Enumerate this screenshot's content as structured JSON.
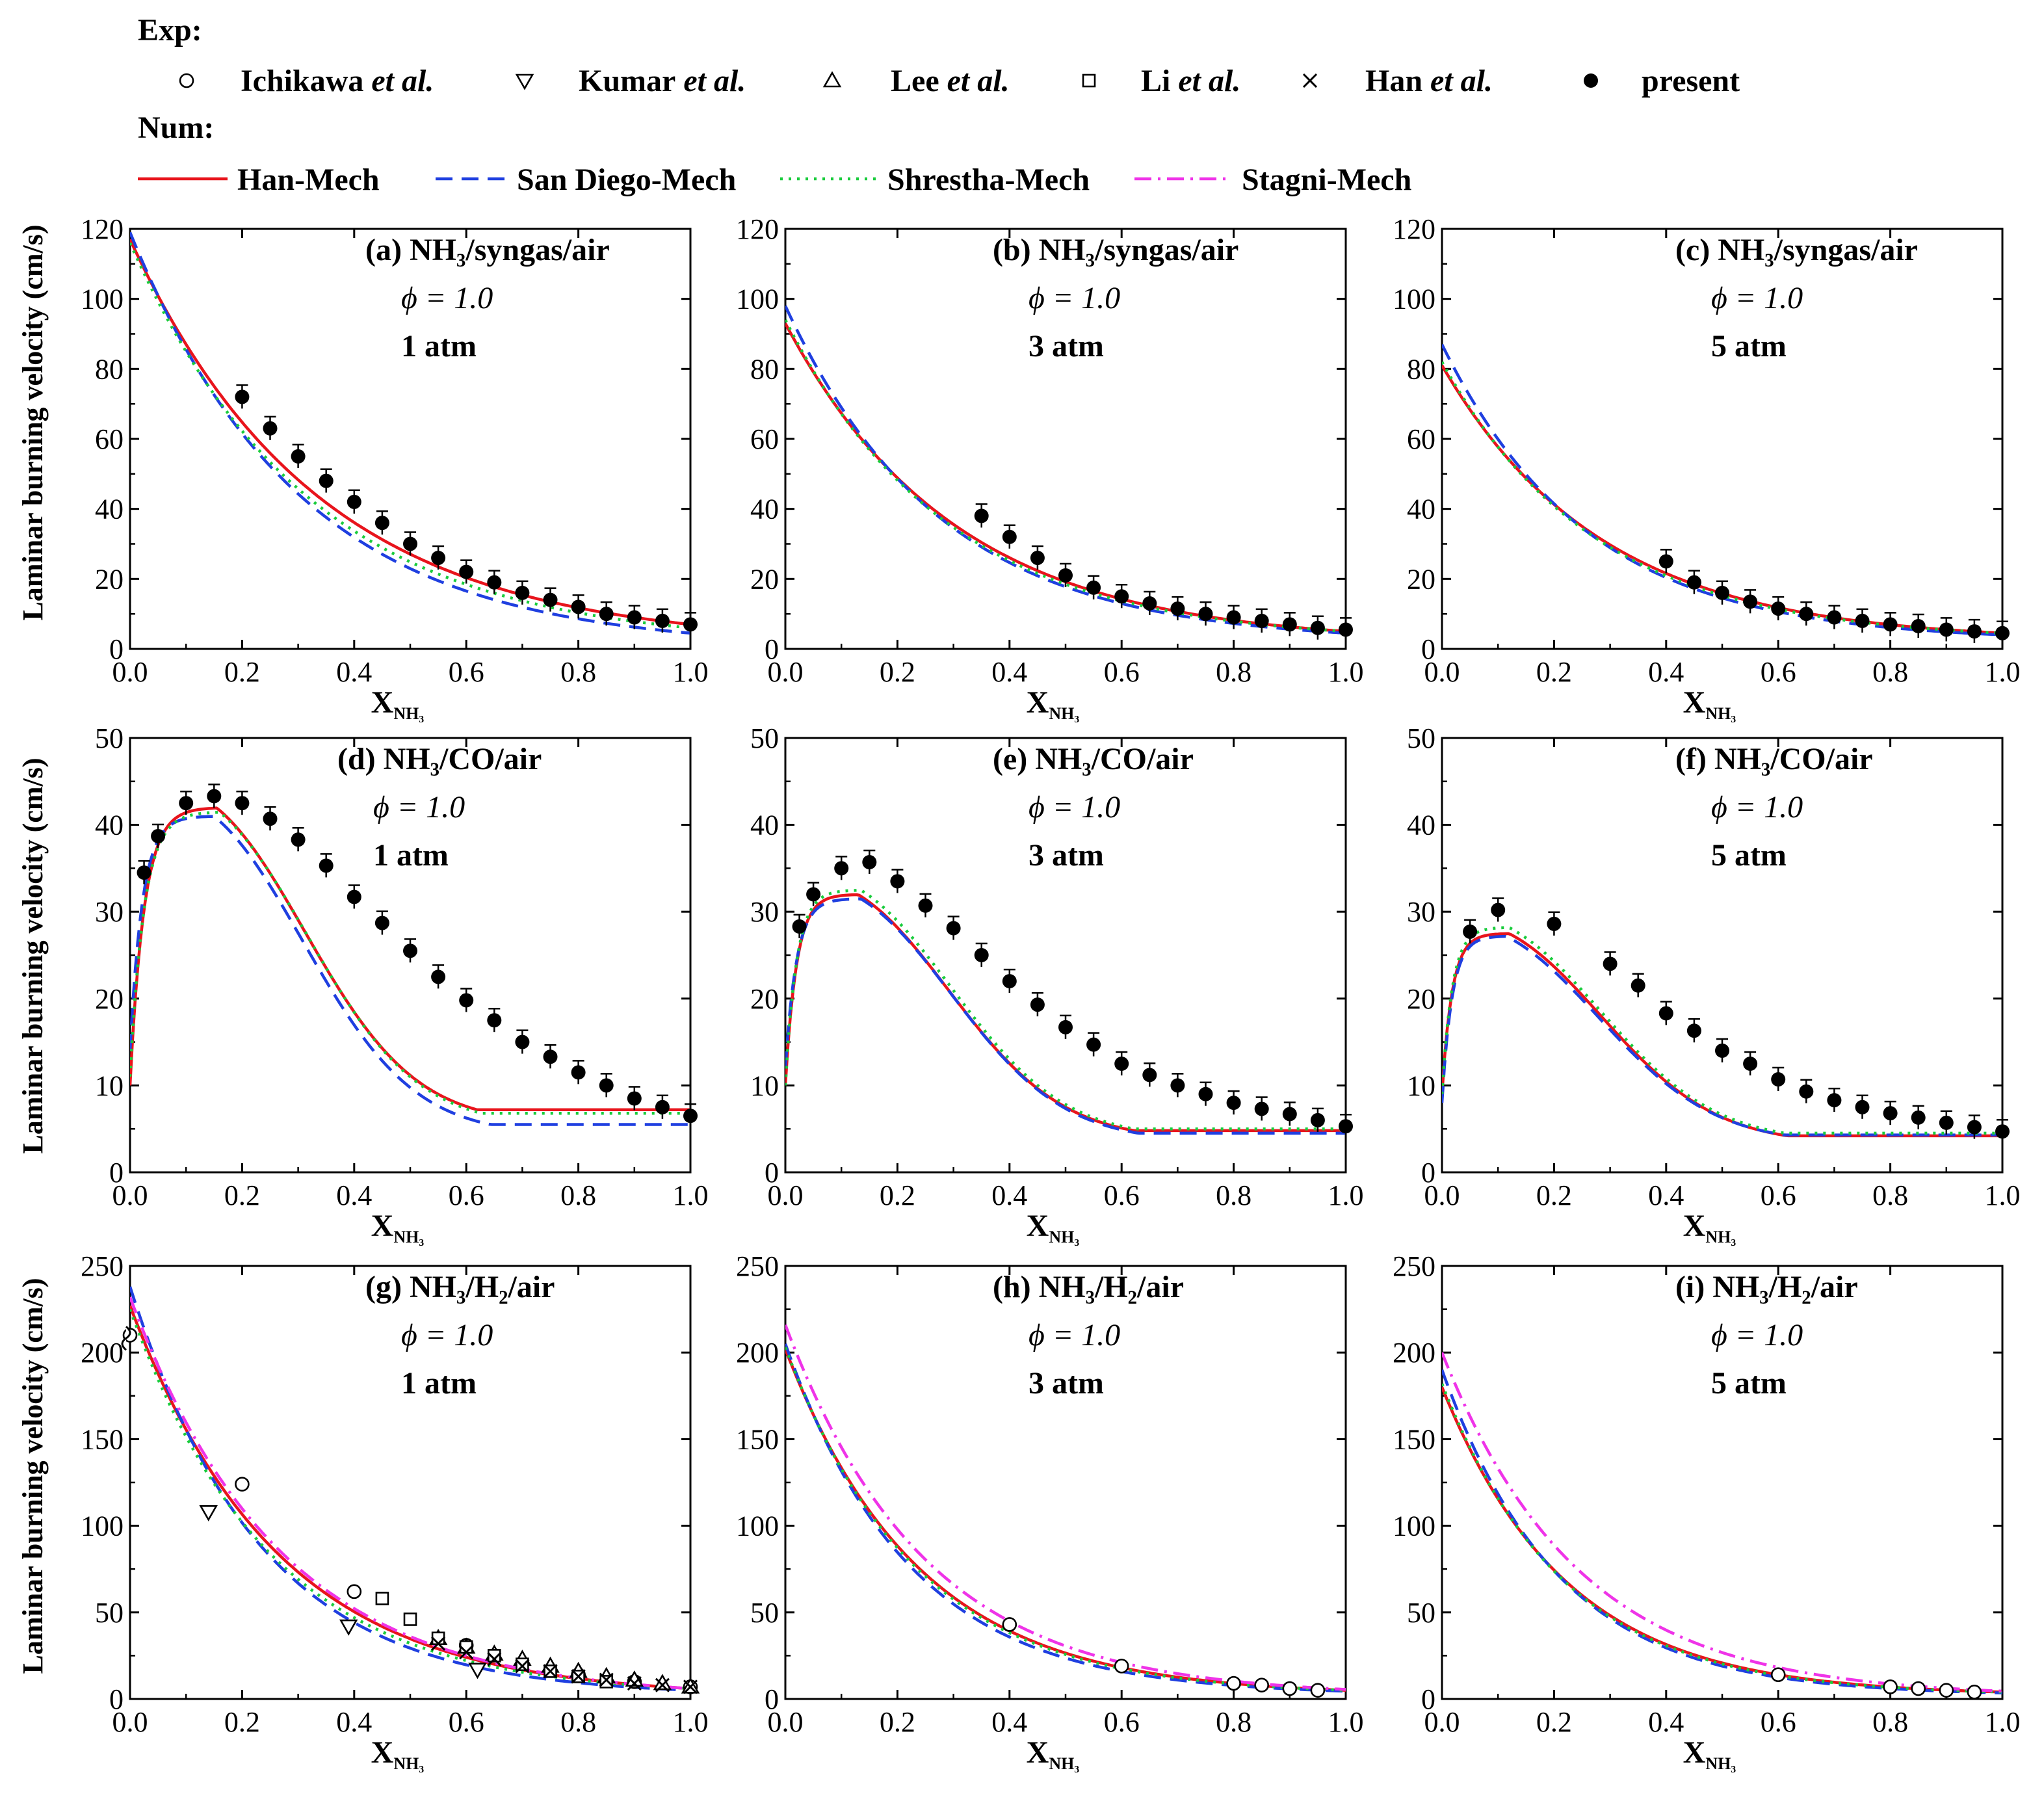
{
  "legend": {
    "exp_label": "Exp:",
    "num_label": "Num:",
    "exp_items": [
      {
        "marker": "open-circle",
        "name": "Ichikawa",
        "suffix": "et al."
      },
      {
        "marker": "open-triangle-down",
        "name": "Kumar",
        "suffix": "et al."
      },
      {
        "marker": "open-triangle-up",
        "name": "Lee",
        "suffix": "et al."
      },
      {
        "marker": "open-square",
        "name": "Li",
        "suffix": "et al."
      },
      {
        "marker": "cross",
        "name": "Han",
        "suffix": "et al."
      },
      {
        "marker": "filled-circle",
        "name": "present",
        "suffix": ""
      }
    ],
    "num_items": [
      {
        "name": "Han-Mech",
        "color": "#e8141c",
        "dash": "solid"
      },
      {
        "name": "San Diego-Mech",
        "color": "#1f3fe0",
        "dash": "dash"
      },
      {
        "name": "Shrestha-Mech",
        "color": "#19cc3c",
        "dash": "dot"
      },
      {
        "name": "Stagni-Mech",
        "color": "#ef33e8",
        "dash": "dashdot"
      }
    ]
  },
  "ylabel": "Laminar burning velocity (cm/s)",
  "xlabel": "X",
  "xlabel_sub": "NH₃",
  "phi_text": "ϕ = 1.0",
  "chart_data": [
    {
      "id": "a",
      "type": "line",
      "title": "(a) NH₃/syngas/air",
      "pressure": "1 atm",
      "xlim": [
        0,
        1
      ],
      "ylim": [
        0,
        120
      ],
      "yticks": [
        0,
        20,
        40,
        60,
        80,
        100,
        120
      ],
      "xticks": [
        "0.0",
        "0.2",
        "0.4",
        "0.6",
        "0.8",
        "1.0"
      ],
      "exp": [
        {
          "source": "present",
          "marker": "filled-circle",
          "x": [
            0.2,
            0.25,
            0.3,
            0.35,
            0.4,
            0.45,
            0.5,
            0.55,
            0.6,
            0.65,
            0.7,
            0.75,
            0.8,
            0.85,
            0.9,
            0.95,
            1.0
          ],
          "y": [
            72,
            63,
            55,
            48,
            42,
            36,
            30,
            26,
            22,
            19,
            16,
            14,
            12,
            10,
            9,
            8,
            7
          ]
        }
      ],
      "series": [
        {
          "name": "Han-Mech",
          "y0": 117,
          "y1": 7,
          "k": 3.0
        },
        {
          "name": "San Diego-Mech",
          "y0": 119,
          "y1": 4.5,
          "k": 3.3
        },
        {
          "name": "Shrestha-Mech",
          "y0": 116,
          "y1": 6,
          "k": 3.15
        }
      ]
    },
    {
      "id": "b",
      "type": "line",
      "title": "(b) NH₃/syngas/air",
      "pressure": "3 atm",
      "xlim": [
        0,
        1
      ],
      "ylim": [
        0,
        120
      ],
      "yticks": [
        0,
        20,
        40,
        60,
        80,
        100,
        120
      ],
      "xticks": [
        "0.0",
        "0.2",
        "0.4",
        "0.6",
        "0.8",
        "1.0"
      ],
      "exp": [
        {
          "source": "present",
          "marker": "filled-circle",
          "x": [
            0.35,
            0.4,
            0.45,
            0.5,
            0.55,
            0.6,
            0.65,
            0.7,
            0.75,
            0.8,
            0.85,
            0.9,
            0.95,
            1.0
          ],
          "y": [
            38,
            32,
            26,
            21,
            17.5,
            15,
            13,
            11.5,
            10,
            9,
            8,
            7,
            6,
            5.5
          ]
        }
      ],
      "series": [
        {
          "name": "Han-Mech",
          "y0": 93,
          "y1": 5,
          "k": 3.3
        },
        {
          "name": "San Diego-Mech",
          "y0": 98,
          "y1": 4.5,
          "k": 3.6
        },
        {
          "name": "Shrestha-Mech",
          "y0": 94,
          "y1": 5,
          "k": 3.45
        }
      ]
    },
    {
      "id": "c",
      "type": "line",
      "title": "(c) NH₃/syngas/air",
      "pressure": "5 atm",
      "xlim": [
        0,
        1
      ],
      "ylim": [
        0,
        120
      ],
      "yticks": [
        0,
        20,
        40,
        60,
        80,
        100,
        120
      ],
      "xticks": [
        "0.0",
        "0.2",
        "0.4",
        "0.6",
        "0.8",
        "1.0"
      ],
      "exp": [
        {
          "source": "present",
          "marker": "filled-circle",
          "x": [
            0.4,
            0.45,
            0.5,
            0.55,
            0.6,
            0.65,
            0.7,
            0.75,
            0.8,
            0.85,
            0.9,
            0.95,
            1.0
          ],
          "y": [
            25,
            19,
            16,
            13.5,
            11.5,
            10,
            9,
            8,
            7,
            6.5,
            5.5,
            5,
            4.5
          ]
        }
      ],
      "series": [
        {
          "name": "Han-Mech",
          "y0": 81,
          "y1": 4.5,
          "k": 3.5
        },
        {
          "name": "San Diego-Mech",
          "y0": 87,
          "y1": 4,
          "k": 3.85
        },
        {
          "name": "Shrestha-Mech",
          "y0": 82,
          "y1": 4.5,
          "k": 3.65
        }
      ]
    },
    {
      "id": "d",
      "type": "line",
      "title": "(d) NH₃/CO/air",
      "pressure": "1 atm",
      "xlim": [
        0,
        1
      ],
      "ylim": [
        0,
        50
      ],
      "yticks": [
        0,
        10,
        20,
        30,
        40,
        50
      ],
      "xticks": [
        "0.0",
        "0.2",
        "0.4",
        "0.6",
        "0.8",
        "1.0"
      ],
      "exp": [
        {
          "source": "present",
          "marker": "filled-circle",
          "x": [
            0.025,
            0.05,
            0.1,
            0.15,
            0.2,
            0.25,
            0.3,
            0.35,
            0.4,
            0.45,
            0.5,
            0.55,
            0.6,
            0.65,
            0.7,
            0.75,
            0.8,
            0.85,
            0.9,
            0.95,
            1.0
          ],
          "y": [
            34.5,
            38.7,
            42.5,
            43.3,
            42.5,
            40.7,
            38.3,
            35.3,
            31.7,
            28.7,
            25.5,
            22.5,
            19.8,
            17.5,
            15,
            13.3,
            11.5,
            10,
            8.5,
            7.5,
            6.5
          ]
        }
      ],
      "series": [
        {
          "name": "Han-Mech",
          "a": 10,
          "peak": 42,
          "xp": 0.155,
          "y1": 7.2,
          "rise": 0.025
        },
        {
          "name": "San Diego-Mech",
          "a": 14,
          "peak": 41,
          "xp": 0.15,
          "y1": 5.5,
          "rise": 0.022
        },
        {
          "name": "Shrestha-Mech",
          "a": 11,
          "peak": 41.5,
          "xp": 0.16,
          "y1": 6.8,
          "rise": 0.025
        }
      ]
    },
    {
      "id": "e",
      "type": "line",
      "title": "(e) NH₃/CO/air",
      "pressure": "3 atm",
      "xlim": [
        0,
        1
      ],
      "ylim": [
        0,
        50
      ],
      "yticks": [
        0,
        10,
        20,
        30,
        40,
        50
      ],
      "xticks": [
        "0.0",
        "0.2",
        "0.4",
        "0.6",
        "0.8",
        "1.0"
      ],
      "exp": [
        {
          "source": "present",
          "marker": "filled-circle",
          "x": [
            0.025,
            0.05,
            0.1,
            0.15,
            0.2,
            0.25,
            0.3,
            0.35,
            0.4,
            0.45,
            0.5,
            0.55,
            0.6,
            0.65,
            0.7,
            0.75,
            0.8,
            0.85,
            0.9,
            0.95,
            1.0
          ],
          "y": [
            28.3,
            32,
            35,
            35.7,
            33.5,
            30.7,
            28.1,
            25,
            22,
            19.3,
            16.7,
            14.7,
            12.5,
            11.2,
            10,
            9,
            8,
            7.3,
            6.7,
            6,
            5.3
          ]
        }
      ],
      "series": [
        {
          "name": "Han-Mech",
          "a": 10,
          "peak": 32,
          "xp": 0.13,
          "y1": 4.8,
          "rise": 0.02
        },
        {
          "name": "San Diego-Mech",
          "a": 12,
          "peak": 31.5,
          "xp": 0.135,
          "y1": 4.5,
          "rise": 0.02
        },
        {
          "name": "Shrestha-Mech",
          "a": 10,
          "peak": 32.5,
          "xp": 0.135,
          "y1": 5,
          "rise": 0.02
        }
      ]
    },
    {
      "id": "f",
      "type": "line",
      "title": "(f) NH₃/CO/air",
      "pressure": "5 atm",
      "xlim": [
        0,
        1
      ],
      "ylim": [
        0,
        50
      ],
      "yticks": [
        0,
        10,
        20,
        30,
        40,
        50
      ],
      "xticks": [
        "0.0",
        "0.2",
        "0.4",
        "0.6",
        "0.8",
        "1.0"
      ],
      "exp": [
        {
          "source": "present",
          "marker": "filled-circle",
          "x": [
            0.05,
            0.1,
            0.2,
            0.3,
            0.35,
            0.4,
            0.45,
            0.5,
            0.55,
            0.6,
            0.65,
            0.7,
            0.75,
            0.8,
            0.85,
            0.9,
            0.95,
            1.0
          ],
          "y": [
            27.7,
            30.2,
            28.6,
            24,
            21.5,
            18.3,
            16.3,
            14,
            12.5,
            10.7,
            9.3,
            8.3,
            7.5,
            6.8,
            6.3,
            5.7,
            5.2,
            4.7
          ]
        }
      ],
      "series": [
        {
          "name": "Han-Mech",
          "a": 9,
          "peak": 27.5,
          "xp": 0.12,
          "y1": 4.2,
          "rise": 0.018
        },
        {
          "name": "San Diego-Mech",
          "a": 8,
          "peak": 27.2,
          "xp": 0.115,
          "y1": 4.3,
          "rise": 0.018
        },
        {
          "name": "Shrestha-Mech",
          "a": 9,
          "peak": 28.2,
          "xp": 0.12,
          "y1": 4.5,
          "rise": 0.018
        }
      ]
    },
    {
      "id": "g",
      "type": "line",
      "title": "(g) NH₃/H₂/air",
      "pressure": "1 atm",
      "xlim": [
        0,
        1
      ],
      "ylim": [
        0,
        250
      ],
      "yticks": [
        0,
        50,
        100,
        150,
        200,
        250
      ],
      "xticks": [
        "0.0",
        "0.2",
        "0.4",
        "0.6",
        "0.8",
        "1.0"
      ],
      "exp": [
        {
          "source": "Ichikawa et al.",
          "marker": "open-circle",
          "x": [
            0.0,
            0.2,
            0.4,
            0.6,
            0.8,
            0.9,
            1.0
          ],
          "y": [
            210,
            124,
            62,
            31,
            14,
            10,
            7
          ]
        },
        {
          "source": "Kumar et al.",
          "marker": "open-triangle-down",
          "x": [
            0.14,
            0.39,
            0.62
          ],
          "y": [
            108,
            42,
            17
          ]
        },
        {
          "source": "Lee et al.",
          "marker": "open-triangle-up",
          "x": [
            0.55,
            0.6,
            0.65,
            0.7,
            0.75,
            0.8,
            0.85,
            0.9,
            0.95,
            1.0
          ],
          "y": [
            35,
            30,
            26,
            23,
            19,
            16,
            13,
            11,
            9,
            7
          ]
        },
        {
          "source": "Li et al.",
          "marker": "open-square",
          "x": [
            0.45,
            0.5,
            0.55,
            0.6,
            0.65,
            0.7,
            0.75,
            0.8,
            0.85
          ],
          "y": [
            58,
            46,
            35,
            30,
            25,
            20,
            16,
            13,
            10
          ]
        },
        {
          "source": "Han et al.",
          "marker": "cross",
          "x": [
            0.55,
            0.6,
            0.65,
            0.7,
            0.75,
            0.8,
            0.85,
            0.9,
            0.95,
            1.0
          ],
          "y": [
            32,
            27,
            23,
            19,
            16,
            13,
            11,
            9,
            8,
            7
          ]
        }
      ],
      "series": [
        {
          "name": "Han-Mech",
          "y0": 227,
          "y1": 6,
          "k": 3.8
        },
        {
          "name": "San Diego-Mech",
          "y0": 238,
          "y1": 5,
          "k": 4.3
        },
        {
          "name": "Shrestha-Mech",
          "y0": 225,
          "y1": 6,
          "k": 4.0
        },
        {
          "name": "Stagni-Mech",
          "y0": 232,
          "y1": 6,
          "k": 3.75
        }
      ]
    },
    {
      "id": "h",
      "type": "line",
      "title": "(h) NH₃/H₂/air",
      "pressure": "3 atm",
      "xlim": [
        0,
        1
      ],
      "ylim": [
        0,
        250
      ],
      "yticks": [
        0,
        50,
        100,
        150,
        200,
        250
      ],
      "xticks": [
        "0.0",
        "0.2",
        "0.4",
        "0.6",
        "0.8",
        "1.0"
      ],
      "exp": [
        {
          "source": "Ichikawa et al.",
          "marker": "open-circle",
          "x": [
            0.4,
            0.6,
            0.8,
            0.85,
            0.9,
            0.95
          ],
          "y": [
            43,
            19,
            9,
            8,
            6,
            5
          ]
        }
      ],
      "series": [
        {
          "name": "Han-Mech",
          "y0": 202,
          "y1": 5,
          "k": 4.2
        },
        {
          "name": "San Diego-Mech",
          "y0": 205,
          "y1": 4.5,
          "k": 4.5
        },
        {
          "name": "Shrestha-Mech",
          "y0": 203,
          "y1": 5,
          "k": 4.3
        },
        {
          "name": "Stagni-Mech",
          "y0": 216,
          "y1": 5.5,
          "k": 4.0
        }
      ]
    },
    {
      "id": "i",
      "type": "line",
      "title": "(i) NH₃/H₂/air",
      "pressure": "5 atm",
      "xlim": [
        0,
        1
      ],
      "ylim": [
        0,
        250
      ],
      "yticks": [
        0,
        50,
        100,
        150,
        200,
        250
      ],
      "xticks": [
        "0.0",
        "0.2",
        "0.4",
        "0.6",
        "0.8",
        "1.0"
      ],
      "exp": [
        {
          "source": "Ichikawa et al.",
          "marker": "open-circle",
          "x": [
            0.6,
            0.8,
            0.85,
            0.9,
            0.95
          ],
          "y": [
            14,
            7,
            6,
            5,
            4
          ]
        }
      ],
      "series": [
        {
          "name": "Han-Mech",
          "y0": 180,
          "y1": 4,
          "k": 4.5
        },
        {
          "name": "San Diego-Mech",
          "y0": 190,
          "y1": 3.5,
          "k": 4.8
        },
        {
          "name": "Shrestha-Mech",
          "y0": 182,
          "y1": 4,
          "k": 4.6
        },
        {
          "name": "Stagni-Mech",
          "y0": 200,
          "y1": 4.5,
          "k": 4.1
        }
      ]
    }
  ]
}
